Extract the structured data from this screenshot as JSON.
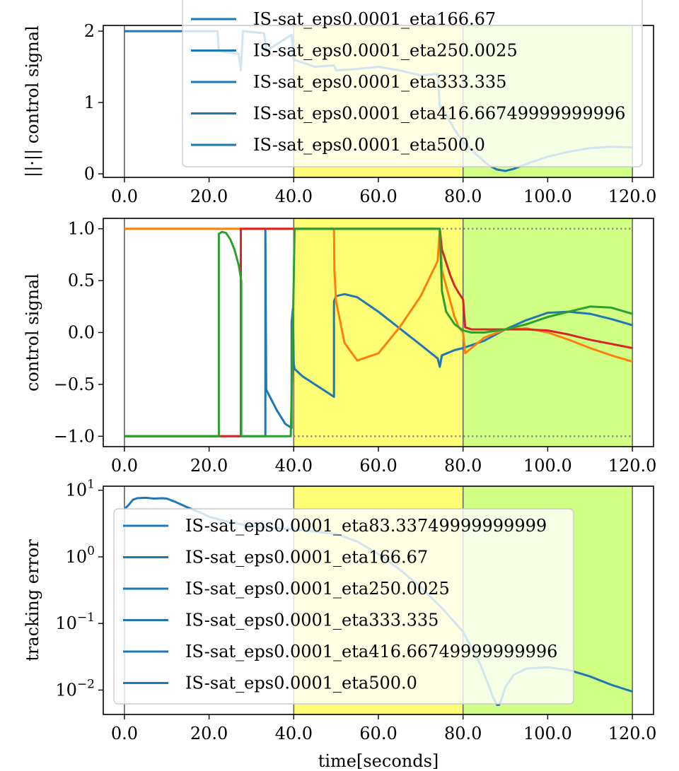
{
  "colors": {
    "zone_yellow": "#ffff66",
    "zone_green": "#ccff77",
    "series_blue": "#1f77b4",
    "series_orange": "#ff7f0e",
    "series_red": "#d62728",
    "series_green": "#2ca02c",
    "limit_dotted": "#808080"
  },
  "chart_data": [
    {
      "type": "line",
      "ylabel": "||·|| control signal",
      "xlim": [
        -5,
        125
      ],
      "ylim": [
        -0.05,
        2.08
      ],
      "x_ticks": [
        0,
        20,
        40,
        60,
        80,
        100,
        120
      ],
      "x_tick_labels": [
        "0.0",
        "20.0",
        "40.0",
        "60.0",
        "80.0",
        "100.0",
        "120.0"
      ],
      "y_ticks": [
        0,
        1,
        2
      ],
      "y_tick_labels": [
        "0",
        "1",
        "2"
      ],
      "shaded_regions": [
        {
          "x": [
            40,
            80
          ],
          "color": "zone_yellow"
        },
        {
          "x": [
            80,
            120
          ],
          "color": "zone_green"
        }
      ],
      "vlines": [
        0,
        40,
        80,
        120
      ],
      "series": [
        {
          "name": "IS-sat_eps0.0001_eta166.67",
          "color": "series_blue",
          "x": [
            0,
            22,
            22.3,
            27,
            27.5,
            28,
            33,
            33.5,
            39.5,
            40,
            45,
            49.5,
            50,
            55,
            60,
            65,
            70,
            74,
            74.5,
            75,
            78,
            80,
            83,
            86,
            88,
            90,
            92,
            95,
            100,
            105,
            110,
            115,
            120
          ],
          "y": [
            2,
            2,
            1.72,
            1.68,
            1.45,
            2,
            1.97,
            1.72,
            1.95,
            1.6,
            1.5,
            1.52,
            1.45,
            1.47,
            1.5,
            1.45,
            1.38,
            1.4,
            0.95,
            0.93,
            0.62,
            0.45,
            0.28,
            0.12,
            0.06,
            0.04,
            0.07,
            0.14,
            0.24,
            0.31,
            0.36,
            0.38,
            0.37
          ]
        }
      ],
      "legend": {
        "placement": "upper center",
        "entries": [
          "IS-sat_eps0.0001_eta166.67",
          "IS-sat_eps0.0001_eta250.0025",
          "IS-sat_eps0.0001_eta333.335",
          "IS-sat_eps0.0001_eta416.66749999999996",
          "IS-sat_eps0.0001_eta500.0"
        ]
      }
    },
    {
      "type": "line",
      "ylabel": "control signal",
      "xlim": [
        -5,
        125
      ],
      "ylim": [
        -1.1,
        1.1
      ],
      "x_ticks": [
        0,
        20,
        40,
        60,
        80,
        100,
        120
      ],
      "x_tick_labels": [
        "0.0",
        "20.0",
        "40.0",
        "60.0",
        "80.0",
        "100.0",
        "120.0"
      ],
      "y_ticks": [
        1.0,
        0.5,
        0.0,
        -0.5,
        -1.0
      ],
      "y_tick_labels": [
        "1.0",
        "0.5",
        "0.0",
        "−0.5",
        "−1.0"
      ],
      "shaded_regions": [
        {
          "x": [
            40,
            80
          ],
          "color": "zone_yellow"
        },
        {
          "x": [
            80,
            120
          ],
          "color": "zone_green"
        }
      ],
      "vlines": [
        0,
        40,
        80,
        120
      ],
      "limit_lines": [
        {
          "y": 1.0,
          "x": [
            40,
            120
          ]
        },
        {
          "y": -1.0,
          "x": [
            40,
            120
          ]
        }
      ],
      "series": [
        {
          "color": "series_blue",
          "x": [
            0,
            33.3,
            33.3,
            33.5,
            36,
            38,
            39.5,
            39.5,
            39.8,
            40,
            40.2,
            42,
            45,
            49.5,
            49.5,
            50,
            52,
            55,
            60,
            65,
            70,
            74,
            74.5,
            75,
            78,
            80,
            85,
            90,
            95,
            100,
            105,
            110,
            115,
            120
          ],
          "y": [
            -1,
            -1,
            1,
            -0.55,
            -0.75,
            -0.88,
            -0.92,
            0.1,
            0.23,
            -0.3,
            -0.35,
            -0.42,
            -0.5,
            -0.62,
            0.3,
            0.35,
            0.37,
            0.34,
            0.2,
            0.04,
            -0.12,
            -0.25,
            -0.33,
            -0.22,
            -0.17,
            -0.15,
            -0.08,
            0.03,
            0.12,
            0.19,
            0.2,
            0.18,
            0.13,
            0.07
          ]
        },
        {
          "color": "series_orange",
          "x": [
            0,
            40,
            49.5,
            49.6,
            50,
            52,
            55,
            60,
            65,
            70,
            74,
            74.5,
            75,
            77,
            78,
            79,
            80,
            80.5,
            82,
            85,
            90,
            95,
            100,
            105,
            110,
            115,
            120
          ],
          "y": [
            1,
            1,
            1,
            0.6,
            0.3,
            -0.1,
            -0.27,
            -0.2,
            0.05,
            0.35,
            0.69,
            1,
            0.6,
            0.3,
            0.15,
            0.05,
            0,
            -0.2,
            -0.15,
            -0.05,
            0.03,
            0.04,
            0.0,
            -0.07,
            -0.15,
            -0.22,
            -0.28
          ]
        },
        {
          "color": "series_red",
          "x": [
            0,
            27.5,
            27.5,
            74.5,
            75,
            77,
            78,
            79,
            80,
            80.5,
            82,
            85,
            90,
            95,
            100,
            105,
            110,
            115,
            120
          ],
          "y": [
            -1,
            -1,
            1,
            1,
            0.8,
            0.55,
            0.45,
            0.38,
            0.32,
            0.05,
            0.03,
            0.03,
            0.03,
            0.03,
            0.02,
            -0.02,
            -0.07,
            -0.11,
            -0.15
          ]
        },
        {
          "color": "series_green",
          "x": [
            0,
            22.3,
            22.3,
            23,
            24,
            25,
            26,
            27,
            27.6,
            27.6,
            28,
            39.3,
            39.5,
            40,
            40.2,
            74.5,
            75,
            76,
            78,
            80,
            82,
            85,
            90,
            95,
            100,
            105,
            110,
            115,
            120
          ],
          "y": [
            -1,
            -1,
            0.95,
            0.97,
            0.96,
            0.9,
            0.8,
            0.65,
            0.5,
            -1,
            -1,
            -1,
            -0.6,
            0.5,
            1,
            1,
            0.4,
            0.2,
            0.08,
            0.02,
            0,
            0,
            0.03,
            0.08,
            0.15,
            0.2,
            0.25,
            0.24,
            0.18
          ]
        }
      ]
    },
    {
      "type": "line",
      "xlabel": "time[seconds]",
      "ylabel": "tracking error",
      "yscale": "log",
      "xlim": [
        -5,
        125
      ],
      "ylim": [
        0.0043,
        11.5
      ],
      "x_ticks": [
        0,
        20,
        40,
        60,
        80,
        100,
        120
      ],
      "x_tick_labels": [
        "0.0",
        "20.0",
        "40.0",
        "60.0",
        "80.0",
        "100.0",
        "120.0"
      ],
      "y_ticks": [
        10,
        1,
        0.1,
        0.01
      ],
      "y_tick_labels": [
        {
          "base": "10",
          "exp": "1"
        },
        {
          "base": "10",
          "exp": "0"
        },
        {
          "base": "10",
          "exp": "−1"
        },
        {
          "base": "10",
          "exp": "−2"
        }
      ],
      "shaded_regions": [
        {
          "x": [
            40,
            80
          ],
          "color": "zone_yellow"
        },
        {
          "x": [
            80,
            120
          ],
          "color": "zone_green"
        }
      ],
      "vlines": [
        0,
        40,
        80,
        120
      ],
      "series": [
        {
          "name": "IS-sat_eps0.0001_eta83.33749999999999",
          "color": "series_blue",
          "x": [
            0,
            1,
            2,
            3,
            5,
            7,
            9,
            10,
            12,
            15,
            18,
            20,
            25,
            30,
            35,
            40,
            45,
            50,
            55,
            60,
            65,
            70,
            75,
            80,
            84,
            86,
            87,
            88,
            88.5,
            89,
            90,
            92,
            95,
            100,
            105,
            110,
            115,
            120
          ],
          "y": [
            5.2,
            6.0,
            7.2,
            7.6,
            7.7,
            7.5,
            7.6,
            7.5,
            6.7,
            5.5,
            4.6,
            4.0,
            3.3,
            2.9,
            2.7,
            2.6,
            2.4,
            2.2,
            1.7,
            1.1,
            0.65,
            0.35,
            0.17,
            0.075,
            0.025,
            0.012,
            0.008,
            0.006,
            0.006,
            0.007,
            0.011,
            0.017,
            0.021,
            0.022,
            0.02,
            0.016,
            0.012,
            0.0095
          ]
        }
      ],
      "legend": {
        "placement": "center left",
        "entries": [
          "IS-sat_eps0.0001_eta83.33749999999999",
          "IS-sat_eps0.0001_eta166.67",
          "IS-sat_eps0.0001_eta250.0025",
          "IS-sat_eps0.0001_eta333.335",
          "IS-sat_eps0.0001_eta416.66749999999996",
          "IS-sat_eps0.0001_eta500.0"
        ]
      }
    }
  ]
}
